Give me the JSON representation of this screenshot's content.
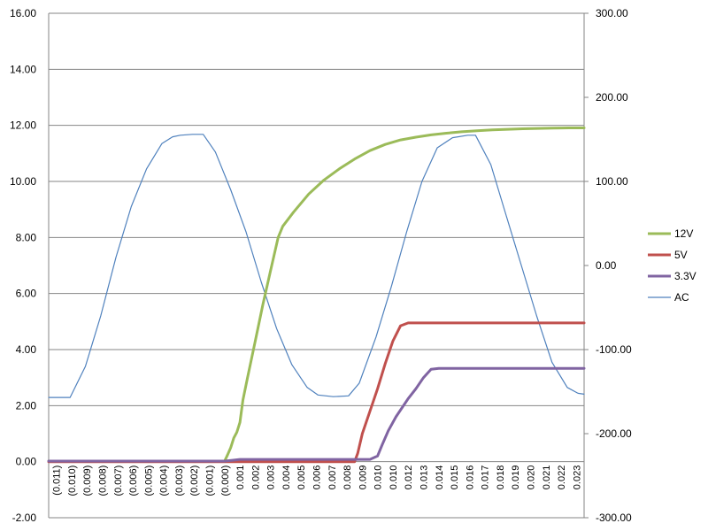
{
  "chart_data": {
    "type": "line",
    "y_left": {
      "range": [
        -2,
        16
      ],
      "ticks": [
        -2,
        0,
        2,
        4,
        6,
        8,
        10,
        12,
        14,
        16
      ],
      "tick_labels": [
        "-2.00",
        "0.00",
        "2.00",
        "4.00",
        "6.00",
        "8.00",
        "10.00",
        "12.00",
        "14.00",
        "16.00"
      ]
    },
    "y_right": {
      "range": [
        -300,
        300
      ],
      "ticks": [
        -300,
        -200,
        -100,
        0,
        100,
        200,
        300
      ],
      "tick_labels": [
        "-300.00",
        "-200.00",
        "-100.00",
        "0.00",
        "100.00",
        "200.00",
        "300.00"
      ]
    },
    "x": {
      "range": [
        -0.0115,
        0.0235
      ],
      "categories": [
        "(0.011)",
        "(0.010)",
        "(0.009)",
        "(0.008)",
        "(0.007)",
        "(0.006)",
        "(0.005)",
        "(0.004)",
        "(0.003)",
        "(0.002)",
        "(0.001)",
        "(0.000)",
        "0.001",
        "0.002",
        "0.003",
        "0.004",
        "0.005",
        "0.006",
        "0.007",
        "0.008",
        "0.009",
        "0.010",
        "0.010",
        "0.012",
        "0.013",
        "0.014",
        "0.015",
        "0.016",
        "0.017",
        "0.018",
        "0.019",
        "0.020",
        "0.021",
        "0.022",
        "0.023"
      ]
    },
    "grid": "horizontal",
    "legend_position": "right",
    "series": [
      {
        "name": "12V",
        "color": "#9bbb59",
        "axis": "left",
        "points": [
          [
            -0.0115,
            0.02
          ],
          [
            0.0,
            0.02
          ],
          [
            0.0002,
            0.25
          ],
          [
            0.0004,
            0.5
          ],
          [
            0.0006,
            0.85
          ],
          [
            0.0008,
            1.05
          ],
          [
            0.001,
            1.4
          ],
          [
            0.0012,
            2.2
          ],
          [
            0.0015,
            3.0
          ],
          [
            0.002,
            4.3
          ],
          [
            0.0025,
            5.6
          ],
          [
            0.003,
            6.8
          ],
          [
            0.0035,
            8.0
          ],
          [
            0.0038,
            8.4
          ],
          [
            0.0045,
            8.9
          ],
          [
            0.0055,
            9.55
          ],
          [
            0.0065,
            10.05
          ],
          [
            0.0075,
            10.45
          ],
          [
            0.0085,
            10.8
          ],
          [
            0.0095,
            11.1
          ],
          [
            0.0105,
            11.32
          ],
          [
            0.0115,
            11.48
          ],
          [
            0.0125,
            11.58
          ],
          [
            0.0135,
            11.66
          ],
          [
            0.0145,
            11.72
          ],
          [
            0.0155,
            11.77
          ],
          [
            0.0165,
            11.81
          ],
          [
            0.0175,
            11.84
          ],
          [
            0.0185,
            11.86
          ],
          [
            0.0195,
            11.88
          ],
          [
            0.0205,
            11.89
          ],
          [
            0.0215,
            11.9
          ],
          [
            0.0225,
            11.91
          ],
          [
            0.0235,
            11.91
          ]
        ]
      },
      {
        "name": "5V",
        "color": "#c0504d",
        "axis": "left",
        "points": [
          [
            -0.0115,
            0.0
          ],
          [
            0.0085,
            0.0
          ],
          [
            0.0087,
            0.3
          ],
          [
            0.009,
            1.0
          ],
          [
            0.0095,
            1.8
          ],
          [
            0.01,
            2.6
          ],
          [
            0.0105,
            3.5
          ],
          [
            0.011,
            4.3
          ],
          [
            0.0115,
            4.85
          ],
          [
            0.012,
            4.95
          ],
          [
            0.0235,
            4.95
          ]
        ]
      },
      {
        "name": "3.3V",
        "color": "#8064a2",
        "axis": "left",
        "points": [
          [
            -0.0115,
            0.02
          ],
          [
            0.0,
            0.02
          ],
          [
            0.0005,
            0.05
          ],
          [
            0.001,
            0.08
          ],
          [
            0.0095,
            0.08
          ],
          [
            0.01,
            0.2
          ],
          [
            0.0103,
            0.6
          ],
          [
            0.0107,
            1.1
          ],
          [
            0.0112,
            1.6
          ],
          [
            0.012,
            2.25
          ],
          [
            0.0125,
            2.6
          ],
          [
            0.013,
            3.0
          ],
          [
            0.0135,
            3.3
          ],
          [
            0.014,
            3.33
          ],
          [
            0.0235,
            3.33
          ]
        ]
      },
      {
        "name": "AC",
        "color": "#4f81bd",
        "axis": "right",
        "points": [
          [
            -0.0115,
            -157
          ],
          [
            -0.0101,
            -157
          ],
          [
            -0.0091,
            -120
          ],
          [
            -0.0081,
            -60
          ],
          [
            -0.0071,
            10
          ],
          [
            -0.0061,
            70
          ],
          [
            -0.0051,
            115
          ],
          [
            -0.0041,
            145
          ],
          [
            -0.0034,
            153
          ],
          [
            -0.0029,
            155
          ],
          [
            -0.0021,
            156
          ],
          [
            -0.0014,
            156
          ],
          [
            -0.0006,
            135
          ],
          [
            0.0004,
            90
          ],
          [
            0.0014,
            40
          ],
          [
            0.0024,
            -20
          ],
          [
            0.0034,
            -75
          ],
          [
            0.0044,
            -118
          ],
          [
            0.0054,
            -145
          ],
          [
            0.0061,
            -154
          ],
          [
            0.0071,
            -156
          ],
          [
            0.0081,
            -155
          ],
          [
            0.0088,
            -140
          ],
          [
            0.0099,
            -85
          ],
          [
            0.0109,
            -25
          ],
          [
            0.0119,
            40
          ],
          [
            0.0129,
            100
          ],
          [
            0.0139,
            140
          ],
          [
            0.0149,
            152
          ],
          [
            0.0159,
            155
          ],
          [
            0.0164,
            155
          ],
          [
            0.0174,
            120
          ],
          [
            0.0184,
            60
          ],
          [
            0.0194,
            0
          ],
          [
            0.0204,
            -60
          ],
          [
            0.0214,
            -115
          ],
          [
            0.0224,
            -145
          ],
          [
            0.0231,
            -152
          ],
          [
            0.0235,
            -153
          ]
        ]
      }
    ]
  }
}
